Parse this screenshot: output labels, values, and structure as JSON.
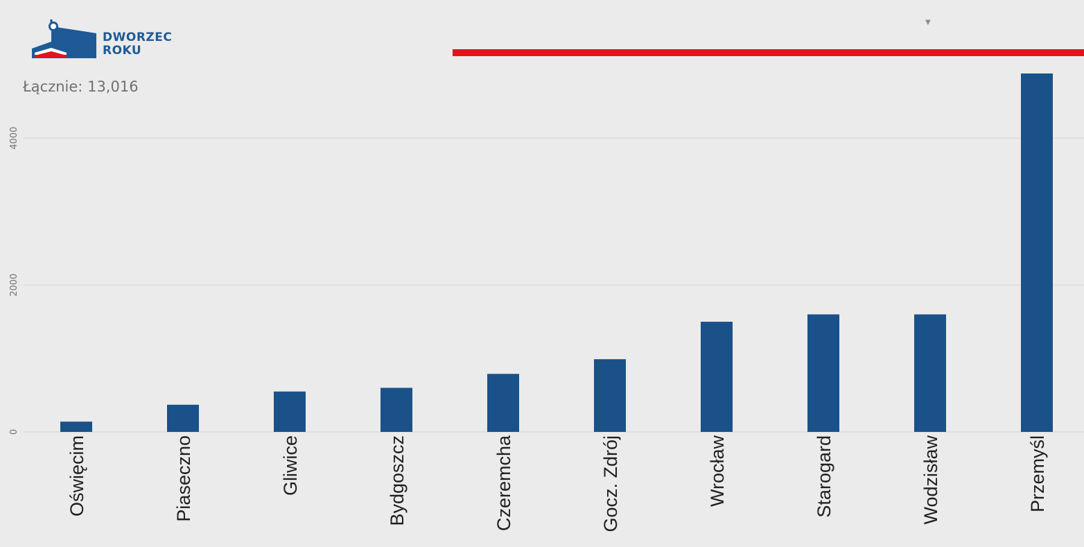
{
  "logo": {
    "line1": "DWORZEC",
    "line2": "ROKU",
    "colors": {
      "blue": "#1f5a96",
      "red": "#e3141b"
    }
  },
  "summary": {
    "total_label": "Łącznie:",
    "total_value": "13,016"
  },
  "accent_color": "#e3141b",
  "dropdown_icon": "chevron-down-icon",
  "chart_data": {
    "type": "bar",
    "categories": [
      "Oświęcim",
      "Piaseczno",
      "Gliwice",
      "Bydgoszcz",
      "Czeremcha",
      "Gocz. Zdrój",
      "Wrocław",
      "Starogard",
      "Wodzisław",
      "Przemyśl"
    ],
    "values": [
      140,
      370,
      550,
      600,
      790,
      990,
      1500,
      1600,
      1600,
      4880
    ],
    "ylim": [
      0,
      4880
    ],
    "yticks": [
      0,
      2000,
      4000
    ],
    "grid": true,
    "legend": "none",
    "bar_color": "#1a5189",
    "grid_color": "#d6d6d6",
    "text_color": "#202020",
    "tick_color": "#707070"
  }
}
